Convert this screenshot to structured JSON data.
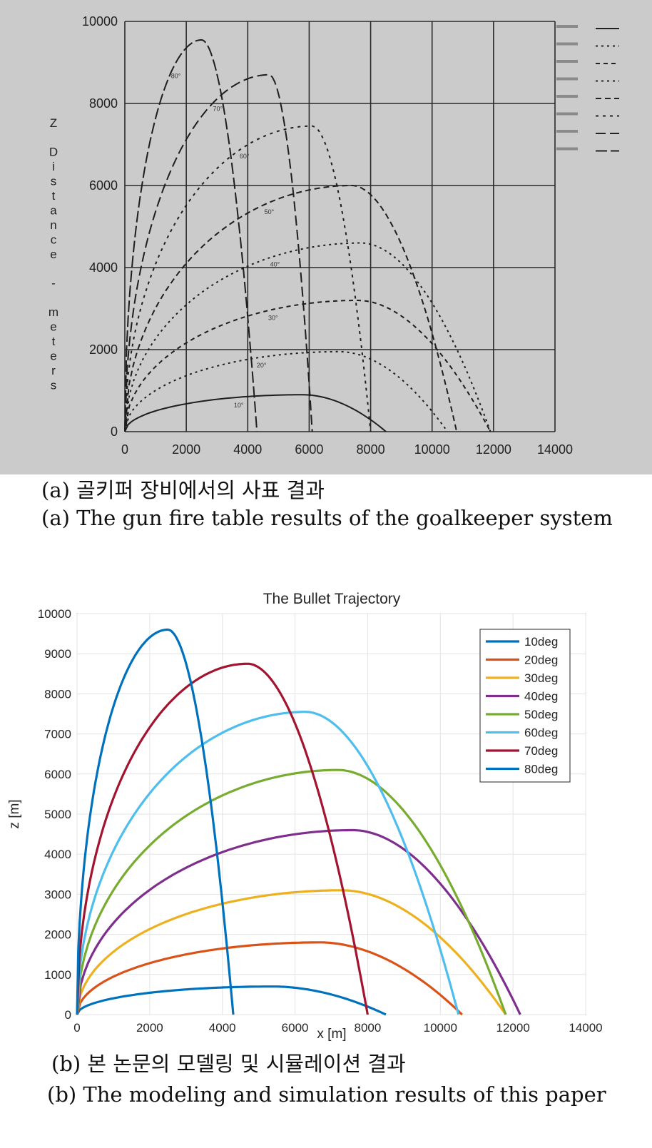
{
  "figure_a": {
    "caption_ko": "(a) 골키퍼 장비에서의 사표 결과",
    "caption_en": "(a) The gun fire table results of the goalkeeper system",
    "chart_data": {
      "type": "line",
      "title": "",
      "xlabel": "",
      "ylabel": "Z Distance - meters",
      "xlim": [
        0,
        14000
      ],
      "ylim": [
        0,
        10000
      ],
      "xticks": [
        "0",
        "2000",
        "4000",
        "6000",
        "8000",
        "10000",
        "12000",
        "14000"
      ],
      "yticks": [
        "0",
        "2000",
        "4000",
        "6000",
        "8000",
        "10000"
      ],
      "grid": true,
      "legend": "top-right",
      "series": [
        {
          "label": "10°",
          "range": 8500,
          "apex_x": 5800,
          "apex_z": 900
        },
        {
          "label": "20°",
          "range": 10500,
          "apex_x": 7000,
          "apex_z": 1950
        },
        {
          "label": "30°",
          "range": 11900,
          "apex_x": 7600,
          "apex_z": 3200
        },
        {
          "label": "40°",
          "range": 11900,
          "apex_x": 7700,
          "apex_z": 4600
        },
        {
          "label": "50°",
          "range": 10800,
          "apex_x": 7400,
          "apex_z": 6000
        },
        {
          "label": "60°",
          "range": 8000,
          "apex_x": 6100,
          "apex_z": 7450
        },
        {
          "label": "70°",
          "range": 6100,
          "apex_x": 4700,
          "apex_z": 8700
        },
        {
          "label": "80°",
          "range": 4300,
          "apex_x": 2500,
          "apex_z": 9550
        }
      ]
    }
  },
  "figure_b": {
    "caption_ko": "(b) 본 논문의 모델링 및 시뮬레이션 결과",
    "caption_en": "(b) The modeling and simulation results of this paper",
    "chart_data": {
      "type": "line",
      "title": "The Bullet Trajectory",
      "xlabel": "x [m]",
      "ylabel": "z [m]",
      "xlim": [
        0,
        14000
      ],
      "ylim": [
        0,
        10000
      ],
      "xticks": [
        "0",
        "2000",
        "4000",
        "6000",
        "8000",
        "10000",
        "12000",
        "14000"
      ],
      "yticks": [
        "0",
        "1000",
        "2000",
        "3000",
        "4000",
        "5000",
        "6000",
        "7000",
        "8000",
        "9000",
        "10000"
      ],
      "grid": true,
      "legend": "top-right",
      "series": [
        {
          "name": "10deg",
          "color": "#0072BD",
          "range": 8500,
          "apex_x": 5400,
          "apex_z": 700
        },
        {
          "name": "20deg",
          "color": "#D95319",
          "range": 10600,
          "apex_x": 6700,
          "apex_z": 1800
        },
        {
          "name": "30deg",
          "color": "#EDB120",
          "range": 11800,
          "apex_x": 7300,
          "apex_z": 3100
        },
        {
          "name": "40deg",
          "color": "#7E2F8E",
          "range": 12200,
          "apex_x": 7600,
          "apex_z": 4600
        },
        {
          "name": "50deg",
          "color": "#77AC30",
          "range": 11800,
          "apex_x": 7200,
          "apex_z": 6100
        },
        {
          "name": "60deg",
          "color": "#4DBEEE",
          "range": 10500,
          "apex_x": 6300,
          "apex_z": 7550
        },
        {
          "name": "70deg",
          "color": "#A2142F",
          "range": 8000,
          "apex_x": 4700,
          "apex_z": 8750
        },
        {
          "name": "80deg",
          "color": "#0072BD",
          "range": 4300,
          "apex_x": 2500,
          "apex_z": 9600
        }
      ]
    }
  }
}
